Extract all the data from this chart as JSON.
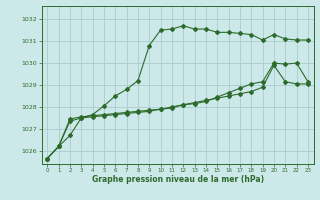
{
  "bg_color": "#cce8e8",
  "grid_color": "#aacccc",
  "line_color": "#2d6b2d",
  "xlabel": "Graphe pression niveau de la mer (hPa)",
  "xlim": [
    -0.5,
    23.5
  ],
  "ylim": [
    1025.4,
    1032.6
  ],
  "yticks": [
    1026,
    1027,
    1028,
    1029,
    1030,
    1031,
    1032
  ],
  "xticks": [
    0,
    1,
    2,
    3,
    4,
    5,
    6,
    7,
    8,
    9,
    10,
    11,
    12,
    13,
    14,
    15,
    16,
    17,
    18,
    19,
    20,
    21,
    22,
    23
  ],
  "series1_x": [
    0,
    1,
    2,
    3,
    4,
    5,
    6,
    7,
    8,
    9,
    10,
    11,
    12,
    13,
    14,
    15,
    16,
    17,
    18,
    19,
    20,
    21,
    22,
    23
  ],
  "series1_y": [
    1025.65,
    1026.2,
    1026.7,
    1027.5,
    1027.65,
    1028.05,
    1028.5,
    1028.8,
    1029.2,
    1030.8,
    1031.5,
    1031.55,
    1031.7,
    1031.55,
    1031.55,
    1031.4,
    1031.4,
    1031.35,
    1031.3,
    1031.05,
    1031.3,
    1031.1,
    1031.05,
    1031.05
  ],
  "series2_x": [
    0,
    1,
    2,
    3,
    4,
    5,
    6,
    7,
    8,
    9,
    10,
    11,
    12,
    13,
    14,
    15,
    16,
    17,
    18,
    19,
    20,
    21,
    22,
    23
  ],
  "series2_y": [
    1025.65,
    1026.2,
    1027.45,
    1027.55,
    1027.6,
    1027.65,
    1027.7,
    1027.75,
    1027.8,
    1027.85,
    1027.9,
    1027.95,
    1028.1,
    1028.15,
    1028.25,
    1028.45,
    1028.65,
    1028.85,
    1029.05,
    1029.15,
    1030.0,
    1029.95,
    1030.0,
    1029.15
  ],
  "series3_x": [
    0,
    1,
    2,
    3,
    4,
    5,
    6,
    7,
    8,
    9,
    10,
    11,
    12,
    13,
    14,
    15,
    16,
    17,
    18,
    19,
    20,
    21,
    22,
    23
  ],
  "series3_y": [
    1025.65,
    1026.2,
    1027.35,
    1027.5,
    1027.55,
    1027.6,
    1027.65,
    1027.7,
    1027.75,
    1027.8,
    1027.9,
    1028.0,
    1028.1,
    1028.2,
    1028.3,
    1028.4,
    1028.5,
    1028.6,
    1028.7,
    1028.9,
    1029.9,
    1029.15,
    1029.05,
    1029.05
  ]
}
